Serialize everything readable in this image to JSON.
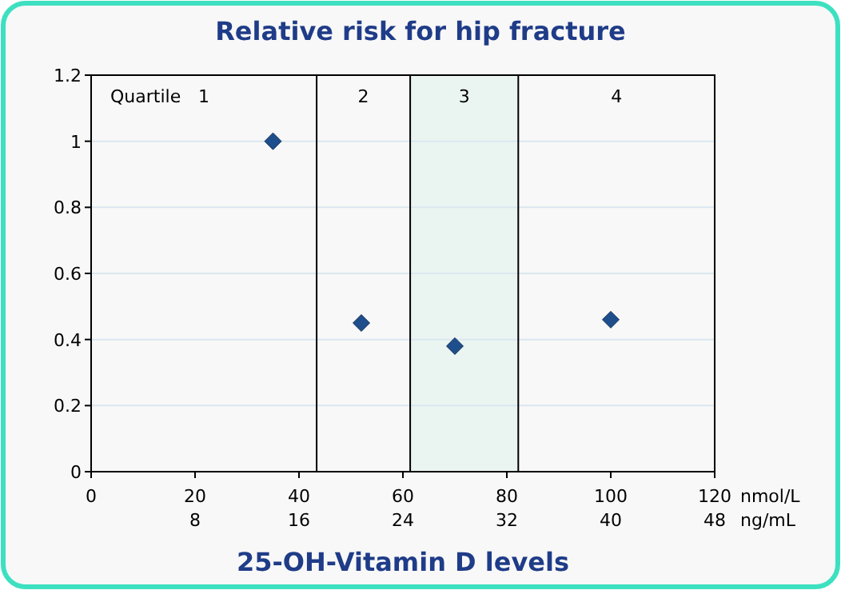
{
  "chart_data": {
    "type": "scatter",
    "title": "Relative risk for hip fracture",
    "xlabel": "25-OH-Vitamin D levels",
    "x2label": "ng/mL",
    "x": [
      35,
      52,
      70,
      100
    ],
    "series": [
      {
        "color": "#1f4e8c",
        "values": [
          1,
          0.45,
          0.38,
          0.46
        ]
      }
    ],
    "marker": "diamond",
    "grid": "y",
    "xlim": [
      0,
      120
    ],
    "xticks": [
      0,
      20,
      40,
      60,
      80,
      100,
      120
    ],
    "x2lim": [
      0,
      48
    ],
    "x2ticks": [
      8,
      16,
      24,
      32,
      40,
      48
    ],
    "ylim": [
      0,
      1.2
    ],
    "yticks": [
      0,
      0.2,
      0.4,
      0.6,
      0.8,
      1,
      1.2
    ],
    "ref_lines": [
      {
        "axis": "x",
        "value": 43.4,
        "color": "#000000"
      },
      {
        "axis": "x",
        "value": 61.4,
        "color": "#000000"
      },
      {
        "axis": "x",
        "value": 82.2,
        "color": "#000000"
      }
    ],
    "bands": [
      {
        "axis": "x",
        "from": 61.4,
        "to": 82.2,
        "color": "#eaf5f2"
      }
    ],
    "annotations": [
      "Quartile",
      "1",
      "2",
      "3",
      "4",
      "nmol/L"
    ]
  }
}
